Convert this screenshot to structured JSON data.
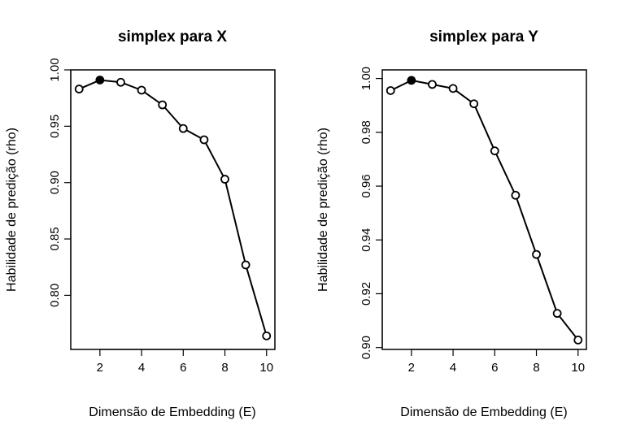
{
  "chart_data": [
    {
      "type": "line",
      "title": "simplex para X",
      "xlabel": "Dimensão de Embedding (E)",
      "ylabel": "Habilidade de predição (rho)",
      "xlim": [
        0.6,
        10.4
      ],
      "ylim": [
        0.752,
        1.0
      ],
      "xticks": [
        2,
        4,
        6,
        8,
        10
      ],
      "xtick_labels": [
        "2",
        "4",
        "6",
        "8",
        "10"
      ],
      "yticks": [
        0.8,
        0.85,
        0.9,
        0.95,
        1.0
      ],
      "ytick_labels": [
        "0.80",
        "0.85",
        "0.90",
        "0.95",
        "1.00"
      ],
      "series": [
        {
          "x": [
            1,
            2,
            3,
            4,
            5,
            6,
            7,
            8,
            9,
            10
          ],
          "values": [
            0.983,
            0.991,
            0.989,
            0.982,
            0.969,
            0.948,
            0.938,
            0.903,
            0.827,
            0.764
          ],
          "highlight_index": 1
        }
      ],
      "color": "#000000",
      "grid": false
    },
    {
      "type": "line",
      "title": "simplex para Y",
      "xlabel": "Dimensão de Embedding (E)",
      "ylabel": "Habilidade de predição (rho)",
      "xlim": [
        0.6,
        10.4
      ],
      "ylim": [
        0.8993,
        1.0032
      ],
      "xticks": [
        2,
        4,
        6,
        8,
        10
      ],
      "xtick_labels": [
        "2",
        "4",
        "6",
        "8",
        "10"
      ],
      "yticks": [
        0.9,
        0.92,
        0.94,
        0.96,
        0.98,
        1.0
      ],
      "ytick_labels": [
        "0.90",
        "0.92",
        "0.94",
        "0.96",
        "0.98",
        "1.00"
      ],
      "series": [
        {
          "x": [
            1,
            2,
            3,
            4,
            5,
            6,
            7,
            8,
            9,
            10
          ],
          "values": [
            0.9955,
            0.9993,
            0.9978,
            0.9963,
            0.9906,
            0.9731,
            0.9566,
            0.9346,
            0.9127,
            0.9028
          ],
          "highlight_index": 1
        }
      ],
      "color": "#000000",
      "grid": false
    }
  ]
}
